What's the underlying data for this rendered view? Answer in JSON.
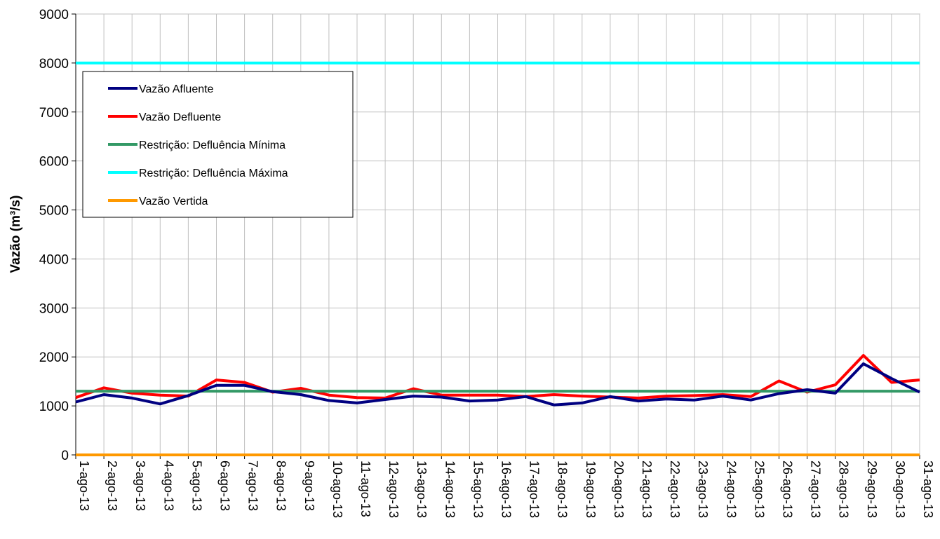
{
  "chart_data": {
    "type": "line",
    "title": "",
    "xlabel": "",
    "ylabel": "Vazão (m³/s)",
    "ylim": [
      0,
      9000
    ],
    "yticks": [
      0,
      1000,
      2000,
      3000,
      4000,
      5000,
      6000,
      7000,
      8000,
      9000
    ],
    "grid": true,
    "legend_position": "top-left",
    "categories": [
      "1-ago-13",
      "2-ago-13",
      "3-ago-13",
      "4-ago-13",
      "5-ago-13",
      "6-ago-13",
      "7-ago-13",
      "8-ago-13",
      "9-ago-13",
      "10-ago-13",
      "11-ago-13",
      "12-ago-13",
      "13-ago-13",
      "14-ago-13",
      "15-ago-13",
      "16-ago-13",
      "17-ago-13",
      "18-ago-13",
      "19-ago-13",
      "20-ago-13",
      "21-ago-13",
      "22-ago-13",
      "23-ago-13",
      "24-ago-13",
      "25-ago-13",
      "26-ago-13",
      "27-ago-13",
      "28-ago-13",
      "29-ago-13",
      "30-ago-13",
      "31-ago-13"
    ],
    "series": [
      {
        "name": "Vazão Afluente",
        "color": "#000080",
        "values": [
          1080,
          1230,
          1160,
          1040,
          1210,
          1420,
          1420,
          1290,
          1230,
          1110,
          1060,
          1130,
          1200,
          1180,
          1100,
          1120,
          1190,
          1020,
          1060,
          1190,
          1100,
          1140,
          1120,
          1200,
          1120,
          1250,
          1330,
          1260,
          1860,
          1560,
          1280
        ]
      },
      {
        "name": "Vazão Defluente",
        "color": "#ff0000",
        "values": [
          1170,
          1370,
          1260,
          1220,
          1200,
          1530,
          1480,
          1280,
          1360,
          1220,
          1170,
          1160,
          1350,
          1220,
          1220,
          1220,
          1190,
          1230,
          1200,
          1180,
          1160,
          1200,
          1210,
          1230,
          1190,
          1510,
          1280,
          1430,
          2030,
          1480,
          1530
        ]
      },
      {
        "name": "Restrição: Defluência Mínima",
        "color": "#339966",
        "values": [
          1300,
          1300,
          1300,
          1300,
          1300,
          1300,
          1300,
          1300,
          1300,
          1300,
          1300,
          1300,
          1300,
          1300,
          1300,
          1300,
          1300,
          1300,
          1300,
          1300,
          1300,
          1300,
          1300,
          1300,
          1300,
          1300,
          1300,
          1300,
          1300,
          1300,
          1300
        ]
      },
      {
        "name": "Restrição: Defluência Máxima",
        "color": "#00ffff",
        "values": [
          8000,
          8000,
          8000,
          8000,
          8000,
          8000,
          8000,
          8000,
          8000,
          8000,
          8000,
          8000,
          8000,
          8000,
          8000,
          8000,
          8000,
          8000,
          8000,
          8000,
          8000,
          8000,
          8000,
          8000,
          8000,
          8000,
          8000,
          8000,
          8000,
          8000,
          8000
        ]
      },
      {
        "name": "Vazão Vertida",
        "color": "#ff9900",
        "values": [
          0,
          0,
          0,
          0,
          0,
          0,
          0,
          0,
          0,
          0,
          0,
          0,
          0,
          0,
          0,
          0,
          0,
          0,
          0,
          0,
          0,
          0,
          0,
          0,
          0,
          0,
          0,
          0,
          0,
          0,
          0
        ]
      }
    ]
  }
}
